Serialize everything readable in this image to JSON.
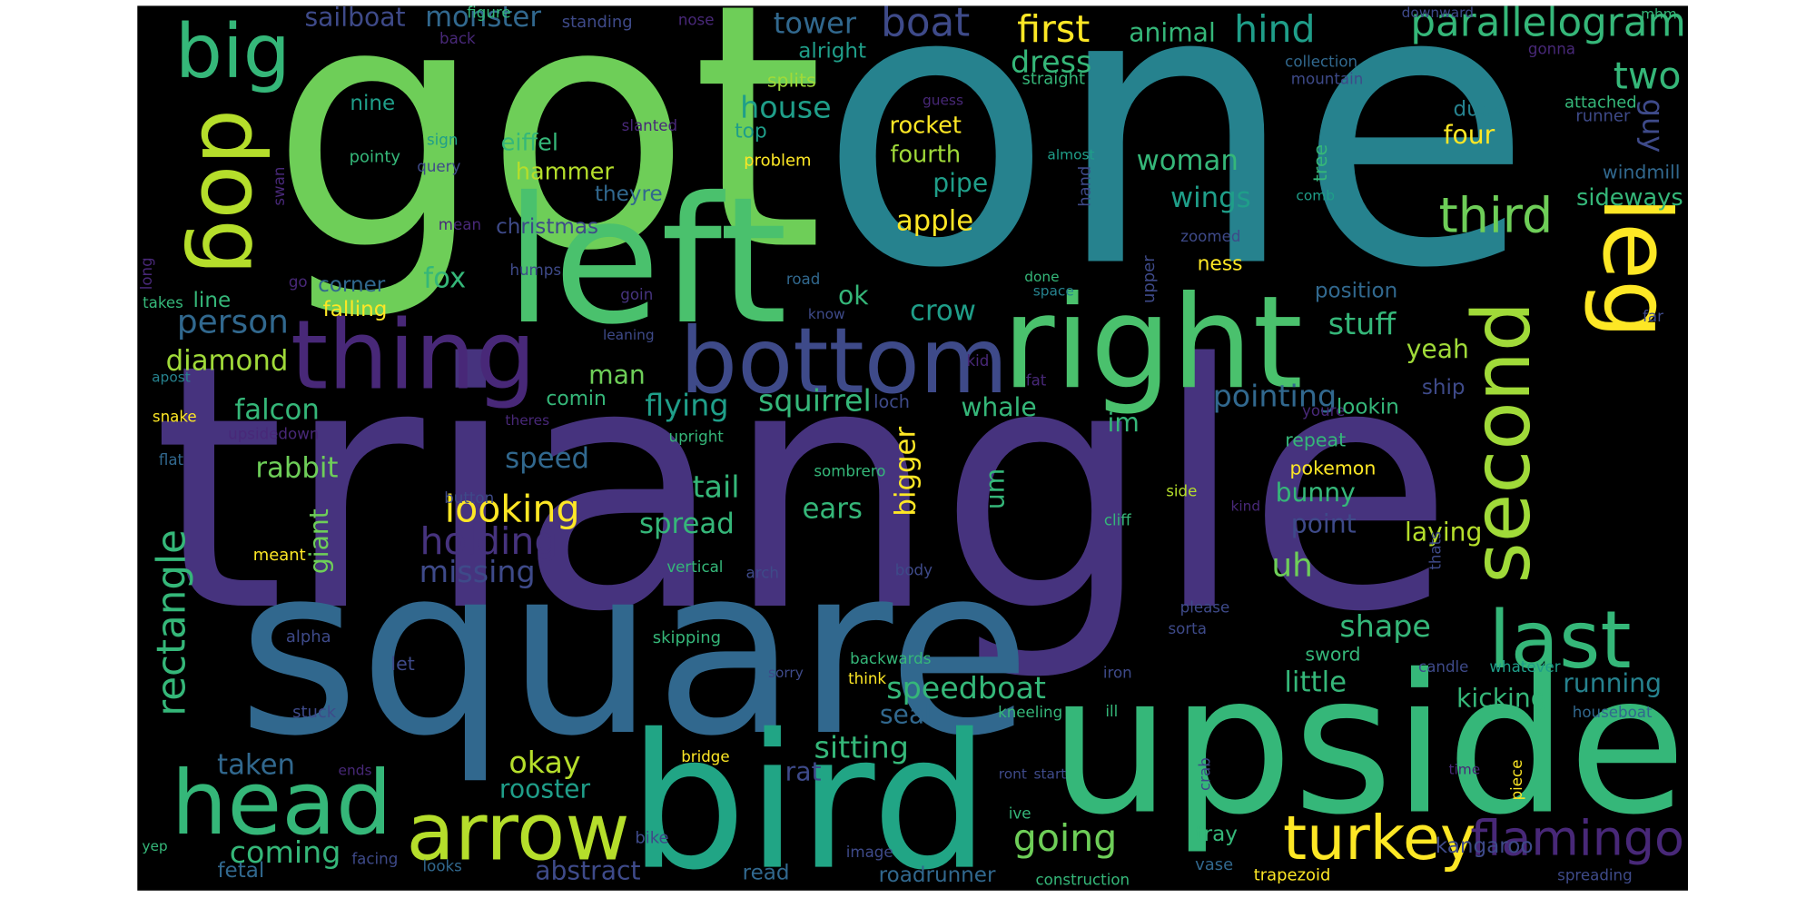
{
  "words": [
    {
      "text": "triangle",
      "color": "#46337e"
    },
    {
      "text": "one",
      "color": "#26828e"
    },
    {
      "text": "got",
      "color": "#6ece58"
    },
    {
      "text": "square",
      "color": "#31688e"
    },
    {
      "text": "upside",
      "color": "#35b779"
    },
    {
      "text": "bird",
      "color": "#21a585"
    },
    {
      "text": "left",
      "color": "#4ac16d"
    },
    {
      "text": "right",
      "color": "#4ac16d"
    },
    {
      "text": "bottom",
      "color": "#3e4a89"
    },
    {
      "text": "thing",
      "color": "#482878"
    },
    {
      "text": "head",
      "color": "#35b779"
    },
    {
      "text": "arrow",
      "color": "#b5de2b"
    },
    {
      "text": "turkey",
      "color": "#fde725"
    },
    {
      "text": "flamingo",
      "color": "#482878"
    },
    {
      "text": "last",
      "color": "#35b779"
    },
    {
      "text": "second",
      "color": "#a0da39"
    },
    {
      "text": "leg",
      "color": "#fde725"
    },
    {
      "text": "dog",
      "color": "#b5de2b"
    },
    {
      "text": "big",
      "color": "#35b779"
    },
    {
      "text": "third",
      "color": "#6ece58"
    },
    {
      "text": "parallelogram",
      "color": "#35b779"
    },
    {
      "text": "hind",
      "color": "#1f9e89"
    },
    {
      "text": "first",
      "color": "#fde725"
    },
    {
      "text": "boat",
      "color": "#3e4a89"
    },
    {
      "text": "tower",
      "color": "#31688e"
    },
    {
      "text": "monster",
      "color": "#31688e"
    },
    {
      "text": "sailboat",
      "color": "#3e4a89"
    },
    {
      "text": "two",
      "color": "#35b779"
    },
    {
      "text": "guy",
      "color": "#3e4a89"
    },
    {
      "text": "animal",
      "color": "#35b779"
    },
    {
      "text": "dress",
      "color": "#35b779"
    },
    {
      "text": "alright",
      "color": "#1f9e89"
    },
    {
      "text": "house",
      "color": "#1f9e89"
    },
    {
      "text": "splits",
      "color": "#a0da39"
    },
    {
      "text": "eiffel",
      "color": "#35b779"
    },
    {
      "text": "nine",
      "color": "#1f9e89"
    },
    {
      "text": "top",
      "color": "#1f9e89"
    },
    {
      "text": "rocket",
      "color": "#fde725"
    },
    {
      "text": "fourth",
      "color": "#a0da39"
    },
    {
      "text": "pipe",
      "color": "#1f9e89"
    },
    {
      "text": "apple",
      "color": "#fde725"
    },
    {
      "text": "woman",
      "color": "#35b779"
    },
    {
      "text": "wings",
      "color": "#1f9e89"
    },
    {
      "text": "four",
      "color": "#fde725"
    },
    {
      "text": "duck",
      "color": "#26828e"
    },
    {
      "text": "sideways",
      "color": "#35b779"
    },
    {
      "text": "windmill",
      "color": "#31688e"
    },
    {
      "text": "attached",
      "color": "#35b779"
    },
    {
      "text": "runner",
      "color": "#3e4a89"
    },
    {
      "text": "mhm",
      "color": "#35b779"
    },
    {
      "text": "gonna",
      "color": "#482878"
    },
    {
      "text": "tree",
      "color": "#35b779"
    },
    {
      "text": "comb",
      "color": "#1f9e89"
    },
    {
      "text": "mountain",
      "color": "#3e4a89"
    },
    {
      "text": "collection",
      "color": "#31688e"
    },
    {
      "text": "downward",
      "color": "#3e4a89"
    },
    {
      "text": "straight",
      "color": "#35b779"
    },
    {
      "text": "guess",
      "color": "#482878"
    },
    {
      "text": "problem",
      "color": "#fde725"
    },
    {
      "text": "hammer",
      "color": "#b5de2b"
    },
    {
      "text": "theyre",
      "color": "#31688e"
    },
    {
      "text": "christmas",
      "color": "#3e4a89"
    },
    {
      "text": "query",
      "color": "#3e4a89"
    },
    {
      "text": "pointy",
      "color": "#35b779"
    },
    {
      "text": "sign",
      "color": "#1f9e89"
    },
    {
      "text": "mean",
      "color": "#482878"
    },
    {
      "text": "swan",
      "color": "#482878"
    },
    {
      "text": "back",
      "color": "#482878"
    },
    {
      "text": "figure",
      "color": "#35b779"
    },
    {
      "text": "standing",
      "color": "#3e4a89"
    },
    {
      "text": "nose",
      "color": "#482878"
    },
    {
      "text": "hand",
      "color": "#3e4a89"
    },
    {
      "text": "almost",
      "color": "#1f9e89"
    },
    {
      "text": "zoomed",
      "color": "#3e4a89"
    },
    {
      "text": "upper",
      "color": "#3e4a89"
    },
    {
      "text": "ness",
      "color": "#fde725"
    },
    {
      "text": "position",
      "color": "#31688e"
    },
    {
      "text": "stuff",
      "color": "#35b779"
    },
    {
      "text": "yeah",
      "color": "#a0da39"
    },
    {
      "text": "ship",
      "color": "#3e4a89"
    },
    {
      "text": "pointing",
      "color": "#31688e"
    },
    {
      "text": "crow",
      "color": "#1f9e89"
    },
    {
      "text": "ok",
      "color": "#35b779"
    },
    {
      "text": "done",
      "color": "#35b779"
    },
    {
      "text": "space",
      "color": "#26828e"
    },
    {
      "text": "know",
      "color": "#3e4a89"
    },
    {
      "text": "road",
      "color": "#31688e"
    },
    {
      "text": "goin",
      "color": "#46337e"
    },
    {
      "text": "leaning",
      "color": "#3e4a89"
    },
    {
      "text": "man",
      "color": "#6ece58"
    },
    {
      "text": "fox",
      "color": "#35b779"
    },
    {
      "text": "corner",
      "color": "#31688e"
    },
    {
      "text": "falling",
      "color": "#fde725"
    },
    {
      "text": "line",
      "color": "#35b779"
    },
    {
      "text": "takes",
      "color": "#35b779"
    },
    {
      "text": "long",
      "color": "#482878"
    },
    {
      "text": "go",
      "color": "#482878"
    },
    {
      "text": "person",
      "color": "#31688e"
    },
    {
      "text": "diamond",
      "color": "#a0da39"
    },
    {
      "text": "falcon",
      "color": "#35b779"
    },
    {
      "text": "apost",
      "color": "#26828e"
    },
    {
      "text": "snake",
      "color": "#fde725"
    },
    {
      "text": "upsidedown",
      "color": "#482878"
    },
    {
      "text": "flat",
      "color": "#31688e"
    },
    {
      "text": "rabbit",
      "color": "#6ece58"
    },
    {
      "text": "giant",
      "color": "#6ece58"
    },
    {
      "text": "meant",
      "color": "#fde725"
    },
    {
      "text": "rectangle",
      "color": "#35b779"
    },
    {
      "text": "alpha",
      "color": "#3e4a89"
    },
    {
      "text": "let",
      "color": "#3e4a89"
    },
    {
      "text": "stuck",
      "color": "#3e4a89"
    },
    {
      "text": "ends",
      "color": "#482878"
    },
    {
      "text": "taken",
      "color": "#31688e"
    },
    {
      "text": "coming",
      "color": "#35b779"
    },
    {
      "text": "fetal",
      "color": "#31688e"
    },
    {
      "text": "yep",
      "color": "#35b779"
    },
    {
      "text": "facing",
      "color": "#3e4a89"
    },
    {
      "text": "looks",
      "color": "#31688e"
    },
    {
      "text": "abstract",
      "color": "#3e4a89"
    },
    {
      "text": "read",
      "color": "#31688e"
    },
    {
      "text": "bike",
      "color": "#3e4a89"
    },
    {
      "text": "image",
      "color": "#3e4a89"
    },
    {
      "text": "roadrunner",
      "color": "#31688e"
    },
    {
      "text": "rooster",
      "color": "#1f9e89"
    },
    {
      "text": "okay",
      "color": "#b5de2b"
    },
    {
      "text": "bridge",
      "color": "#fde725"
    },
    {
      "text": "rat",
      "color": "#3e4a89"
    },
    {
      "text": "sitting",
      "color": "#35b779"
    },
    {
      "text": "seal",
      "color": "#31688e"
    },
    {
      "text": "speedboat",
      "color": "#35b779"
    },
    {
      "text": "going",
      "color": "#6ece58"
    },
    {
      "text": "ive",
      "color": "#35b779"
    },
    {
      "text": "ront",
      "color": "#3e4a89"
    },
    {
      "text": "start",
      "color": "#3e4a89"
    },
    {
      "text": "construction",
      "color": "#35b779"
    },
    {
      "text": "tray",
      "color": "#35b779"
    },
    {
      "text": "vase",
      "color": "#31688e"
    },
    {
      "text": "trapezoid",
      "color": "#fde725"
    },
    {
      "text": "kangaroo",
      "color": "#3e4a89"
    },
    {
      "text": "spreading",
      "color": "#3e4a89"
    },
    {
      "text": "crab",
      "color": "#3e4a89"
    },
    {
      "text": "piece",
      "color": "#fde725"
    },
    {
      "text": "time",
      "color": "#482878"
    },
    {
      "text": "houseboat",
      "color": "#31688e"
    },
    {
      "text": "candle",
      "color": "#3e4a89"
    },
    {
      "text": "whatever",
      "color": "#1f9e89"
    },
    {
      "text": "running",
      "color": "#26828e"
    },
    {
      "text": "kicking",
      "color": "#35b779"
    },
    {
      "text": "little",
      "color": "#35b779"
    },
    {
      "text": "shape",
      "color": "#35b779"
    },
    {
      "text": "sword",
      "color": "#35b779"
    },
    {
      "text": "sorta",
      "color": "#3e4a89"
    },
    {
      "text": "please",
      "color": "#3e4a89"
    },
    {
      "text": "kneeling",
      "color": "#35b779"
    },
    {
      "text": "ill",
      "color": "#35b779"
    },
    {
      "text": "iron",
      "color": "#3e4a89"
    },
    {
      "text": "think",
      "color": "#fde725"
    },
    {
      "text": "backwards",
      "color": "#35b779"
    },
    {
      "text": "sorry",
      "color": "#3e4a89"
    },
    {
      "text": "skipping",
      "color": "#35b779"
    },
    {
      "text": "spread",
      "color": "#35b779"
    },
    {
      "text": "tail",
      "color": "#35b779"
    },
    {
      "text": "speed",
      "color": "#31688e"
    },
    {
      "text": "looking",
      "color": "#fde725"
    },
    {
      "text": "holding",
      "color": "#46337e"
    },
    {
      "text": "missing",
      "color": "#3e4a89"
    },
    {
      "text": "vertical",
      "color": "#35b779"
    },
    {
      "text": "arch",
      "color": "#3e4a89"
    },
    {
      "text": "button",
      "color": "#3e4a89"
    },
    {
      "text": "upright",
      "color": "#35b779"
    },
    {
      "text": "theres",
      "color": "#482878"
    },
    {
      "text": "comin",
      "color": "#35b779"
    },
    {
      "text": "flying",
      "color": "#1f9e89"
    },
    {
      "text": "squirrel",
      "color": "#35b779"
    },
    {
      "text": "loch",
      "color": "#3e4a89"
    },
    {
      "text": "whale",
      "color": "#35b779"
    },
    {
      "text": "sombrero",
      "color": "#35b779"
    },
    {
      "text": "bigger",
      "color": "#fde725"
    },
    {
      "text": "ears",
      "color": "#35b779"
    },
    {
      "text": "um",
      "color": "#35b779"
    },
    {
      "text": "kid",
      "color": "#482878"
    },
    {
      "text": "fat",
      "color": "#482878"
    },
    {
      "text": "im",
      "color": "#35b779"
    },
    {
      "text": "youre",
      "color": "#482878"
    },
    {
      "text": "lookin",
      "color": "#35b779"
    },
    {
      "text": "repeat",
      "color": "#35b779"
    },
    {
      "text": "pokemon",
      "color": "#fde725"
    },
    {
      "text": "bunny",
      "color": "#35b779"
    },
    {
      "text": "point",
      "color": "#3e4a89"
    },
    {
      "text": "laying",
      "color": "#b5de2b"
    },
    {
      "text": "side",
      "color": "#b5de2b"
    },
    {
      "text": "thats",
      "color": "#3e4a89"
    },
    {
      "text": "kind",
      "color": "#482878"
    },
    {
      "text": "uh",
      "color": "#6ece58"
    },
    {
      "text": "cliff",
      "color": "#35b779"
    },
    {
      "text": "body",
      "color": "#3e4a89"
    },
    {
      "text": "slanted",
      "color": "#482878"
    },
    {
      "text": "humps",
      "color": "#3e4a89"
    },
    {
      "text": "far",
      "color": "#3e4a89"
    }
  ]
}
